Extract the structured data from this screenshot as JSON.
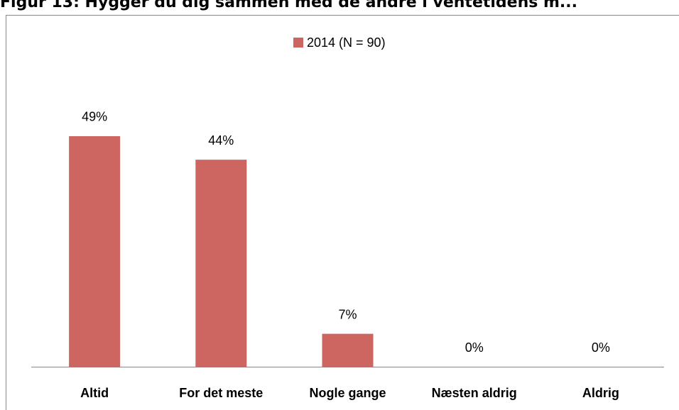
{
  "chart_data": {
    "type": "bar",
    "title": "Figur 13: Hygger du dig sammen med de andre i ventetidens m...",
    "categories": [
      "Altid",
      "For det meste",
      "Nogle gange",
      "Næsten aldrig",
      "Aldrig"
    ],
    "series": [
      {
        "name": "2014 (N = 90)",
        "color": "#cd6660",
        "values": [
          49,
          44,
          7,
          0,
          0
        ],
        "value_labels": [
          "49%",
          "44%",
          "7%",
          "0%",
          "0%"
        ]
      }
    ],
    "ylim": [
      0,
      60
    ],
    "legend": "top"
  }
}
